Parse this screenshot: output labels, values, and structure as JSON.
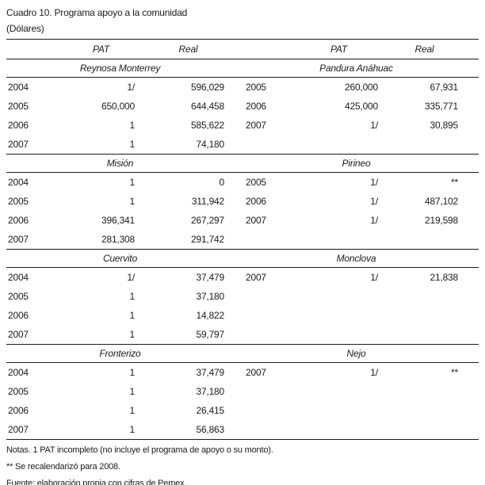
{
  "title": "Cuadro 10. Programa apoyo a la comunidad",
  "subtitle": "(Dólares)",
  "columns": {
    "pat": "PAT",
    "real": "Real"
  },
  "sections": [
    {
      "left": {
        "name": "Reynosa Monterrey",
        "rows": [
          [
            "2004",
            "1/",
            "596,029"
          ],
          [
            "2005",
            "650,000",
            "644,458"
          ],
          [
            "2006",
            "1",
            "585,622"
          ],
          [
            "2007",
            "1",
            "74,180"
          ]
        ]
      },
      "right": {
        "name": "Pandura Anáhuac",
        "rows": [
          [
            "2005",
            "260,000",
            "67,931"
          ],
          [
            "2006",
            "425,000",
            "335,771"
          ],
          [
            "2007",
            "1/",
            "30,895"
          ]
        ]
      }
    },
    {
      "left": {
        "name": "Misión",
        "rows": [
          [
            "2004",
            "1",
            "0"
          ],
          [
            "2005",
            "1",
            "311,942"
          ],
          [
            "2006",
            "396,341",
            "267,297"
          ],
          [
            "2007",
            "281,308",
            "291,742"
          ]
        ]
      },
      "right": {
        "name": "Pirineo",
        "rows": [
          [
            "2005",
            "1/",
            "**"
          ],
          [
            "2006",
            "1/",
            "487,102"
          ],
          [
            "2007",
            "1/",
            "219,598"
          ]
        ]
      }
    },
    {
      "left": {
        "name": "Cuervito",
        "rows": [
          [
            "2004",
            "1/",
            "37,479"
          ],
          [
            "2005",
            "1",
            "37,180"
          ],
          [
            "2006",
            "1",
            "14,822"
          ],
          [
            "2007",
            "1",
            "59,797"
          ]
        ]
      },
      "right": {
        "name": "Monclova",
        "rows": [
          [
            "2007",
            "1/",
            "21,838"
          ]
        ]
      }
    },
    {
      "left": {
        "name": "Fronterizo",
        "rows": [
          [
            "2004",
            "1",
            "37,479"
          ],
          [
            "2005",
            "1",
            "37,180"
          ],
          [
            "2006",
            "1",
            "26,415"
          ],
          [
            "2007",
            "1",
            "56,863"
          ]
        ]
      },
      "right": {
        "name": "Nejo",
        "rows": [
          [
            "2007",
            "1/",
            "**"
          ]
        ]
      }
    }
  ],
  "notes": [
    "Notas. 1 PAT incompleto (no incluye el programa de apoyo o su monto).",
    "** Se recalendarizó para 2008.",
    "Fuente: elaboración propia con cifras de Pemex.."
  ]
}
